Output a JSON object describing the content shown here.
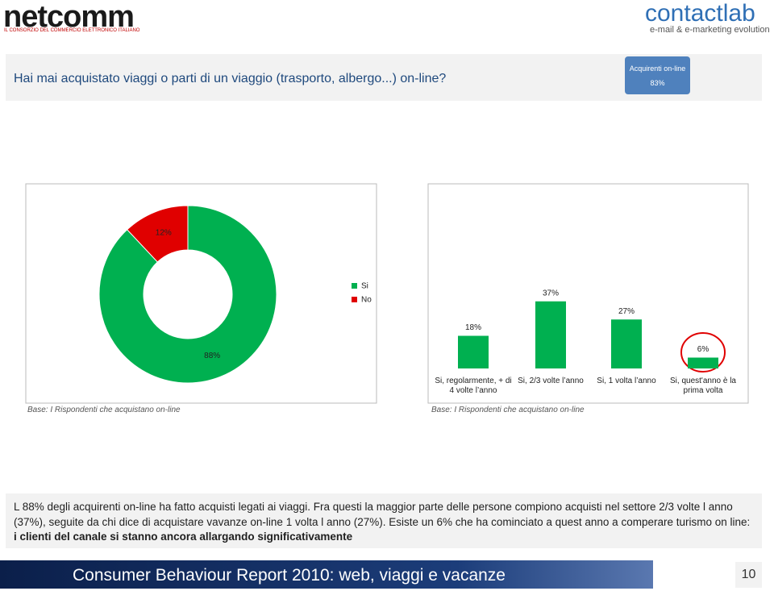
{
  "header": {
    "logo_left": "netcomm",
    "logo_left_tagline": "IL CONSORZIO DEL COMMERCIO ELETTRONICO ITALIANO",
    "logo_right": "contactlab",
    "logo_right_tagline": "e-mail & e-marketing evolution"
  },
  "question": "Hai mai acquistato viaggi o parti di un viaggio (trasporto, albergo...) on-line?",
  "badge": {
    "label": "Acquirenti on-line",
    "value": "83%"
  },
  "chart_data": [
    {
      "type": "pie",
      "categories": [
        "Si",
        "No"
      ],
      "values": [
        88,
        12
      ],
      "value_labels": [
        "88%",
        "12%"
      ],
      "colors": [
        "#00b050",
        "#e00000"
      ],
      "note": "Base: I Rispondenti che acquistano on-line"
    },
    {
      "type": "bar",
      "categories": [
        "Si, regolarmente, + di 4 volte l’anno",
        "Si, 2/3 volte l’anno",
        "Si, 1 volta l’anno",
        "Si, quest'anno è la prima volta"
      ],
      "values": [
        18,
        37,
        27,
        6
      ],
      "value_labels": [
        "18%",
        "37%",
        "27%",
        "6%"
      ],
      "color": "#00b050",
      "note": "Base: I Rispondenti che acquistano on-line"
    }
  ],
  "summary": {
    "text": "L 88% degli acquirenti on-line ha fatto acquisti legati ai viaggi. Fra questi la maggior parte delle persone compiono acquisti nel settore 2/3 volte l anno (37%), seguite da chi dice di acquistare vavanze on-line 1 volta l anno (27%). Esiste un 6% che ha cominciato a quest anno a  comperare turismo on line: ",
    "bold": "i clienti del canale si stanno ancora allargando significativamente"
  },
  "footer": {
    "title": "Consumer Behaviour Report 2010: web, viaggi e vacanze",
    "page": "10"
  }
}
